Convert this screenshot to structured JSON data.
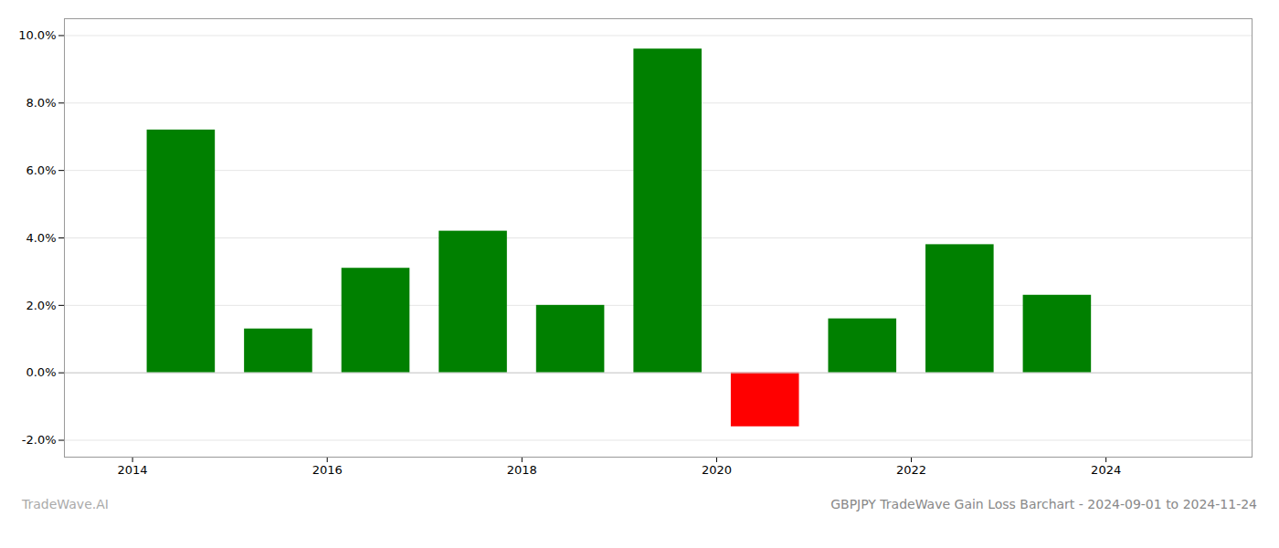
{
  "chart_data": {
    "type": "bar",
    "title": "GBPJPY TradeWave Gain Loss Barchart - 2024-09-01 to 2024-11-24",
    "annotations": [
      "TradeWave.AI"
    ],
    "x": [
      2014,
      2015,
      2016,
      2017,
      2018,
      2019,
      2020,
      2021,
      2022,
      2023
    ],
    "values": [
      0.072,
      0.013,
      0.031,
      0.042,
      0.02,
      0.096,
      -0.016,
      0.016,
      0.038,
      0.023
    ],
    "colors": [
      "#008000",
      "#008000",
      "#008000",
      "#008000",
      "#008000",
      "#008000",
      "#ff0000",
      "#008000",
      "#008000",
      "#008000"
    ],
    "xlim": [
      2012.8,
      2025.0
    ],
    "xticks": [
      {
        "value": 2013.5,
        "label": "2014"
      },
      {
        "value": 2015.5,
        "label": "2016"
      },
      {
        "value": 2017.5,
        "label": "2018"
      },
      {
        "value": 2019.5,
        "label": "2020"
      },
      {
        "value": 2021.5,
        "label": "2022"
      },
      {
        "value": 2023.5,
        "label": "2024"
      }
    ],
    "ylim": [
      -0.025,
      0.105
    ],
    "yticks": [
      {
        "value": -0.02,
        "label": "-2.0%"
      },
      {
        "value": 0.0,
        "label": "0.0%"
      },
      {
        "value": 0.02,
        "label": "2.0%"
      },
      {
        "value": 0.04,
        "label": "4.0%"
      },
      {
        "value": 0.06,
        "label": "6.0%"
      },
      {
        "value": 0.08,
        "label": "8.0%"
      },
      {
        "value": 0.1,
        "label": "10.0%"
      }
    ],
    "grid": true
  }
}
